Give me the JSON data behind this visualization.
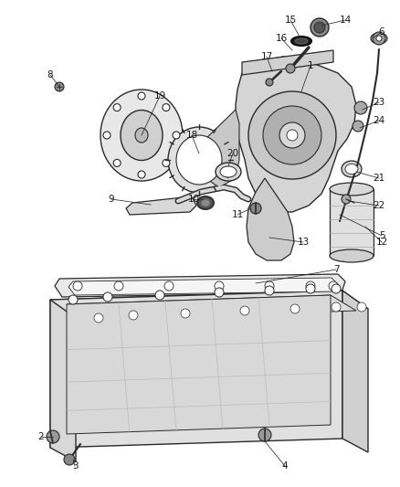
{
  "bg_color": "#ffffff",
  "line_color": "#2a2a2a",
  "label_color": "#1a1a1a",
  "figsize": [
    4.38,
    5.33
  ],
  "dpi": 100
}
